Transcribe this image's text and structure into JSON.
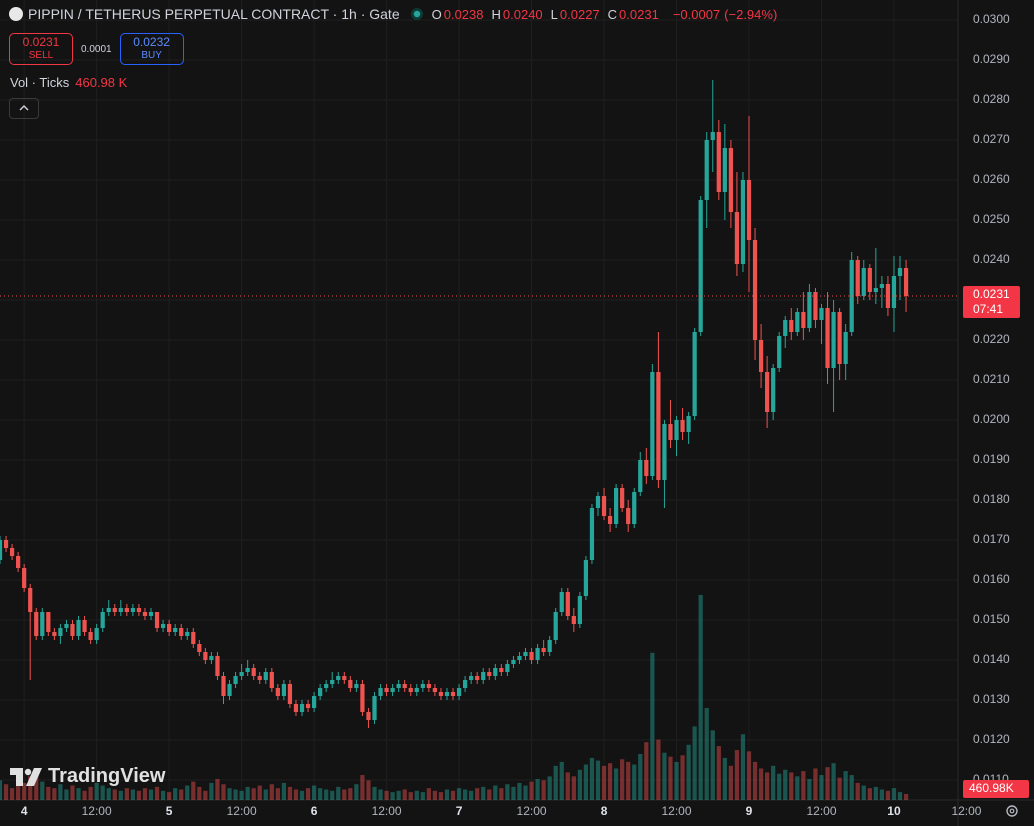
{
  "chart_data": {
    "type": "candlestick",
    "title": "PIPPIN / TETHERUS PERPETUAL CONTRACT · 1h · Gate",
    "ohlc": [
      {
        "key": "O",
        "value": 0.0238,
        "label": "0.0238"
      },
      {
        "key": "H",
        "value": 0.024,
        "label": "0.0240"
      },
      {
        "key": "L",
        "value": 0.0227,
        "label": "0.0227"
      },
      {
        "key": "C",
        "value": 0.0231,
        "label": "0.0231"
      }
    ],
    "change": {
      "value": -0.0007,
      "label": "−0.0007"
    },
    "change_percent": {
      "value": -2.94,
      "label": "(−2.94%)"
    },
    "sell": {
      "value": 0.0231,
      "label": "0.0231"
    },
    "sell_text": "SELL",
    "spread": {
      "value": 0.0001,
      "label": "0.0001"
    },
    "buy": {
      "value": 0.0232,
      "label": "0.0232"
    },
    "buy_text": "BUY",
    "volume_title": "Vol · Ticks",
    "volume_last": {
      "value": 460.98,
      "label": "460.98 K"
    },
    "volume_axis_label": {
      "value": 460.98,
      "label": "460.98K"
    },
    "last_price": {
      "value": 0.0231,
      "label": "0.0231"
    },
    "countdown": "07:41",
    "logo": "TradingView",
    "up_color": "#26a69a",
    "down_color": "#ef5350",
    "grid": true,
    "xlim": [
      -4,
      154.6
    ],
    "ylim": [
      0.0305,
      0.0105
    ],
    "xticks": [
      {
        "value": 0,
        "label": "4"
      },
      {
        "value": 12,
        "label": "12:00"
      },
      {
        "value": 24,
        "label": "5"
      },
      {
        "value": 36,
        "label": "12:00"
      },
      {
        "value": 48,
        "label": "6"
      },
      {
        "value": 60,
        "label": "12:00"
      },
      {
        "value": 72,
        "label": "7"
      },
      {
        "value": 84,
        "label": "12:00"
      },
      {
        "value": 96,
        "label": "8"
      },
      {
        "value": 108,
        "label": "12:00"
      },
      {
        "value": 120,
        "label": "9"
      },
      {
        "value": 132,
        "label": "12:00"
      },
      {
        "value": 144,
        "label": "10"
      },
      {
        "value": 156,
        "label": "12:00"
      }
    ],
    "yticks": [
      {
        "value": 0.011,
        "label": "0.0110"
      },
      {
        "value": 0.012,
        "label": "0.0120"
      },
      {
        "value": 0.013,
        "label": "0.0130"
      },
      {
        "value": 0.014,
        "label": "0.0140"
      },
      {
        "value": 0.015,
        "label": "0.0150"
      },
      {
        "value": 0.016,
        "label": "0.0160"
      },
      {
        "value": 0.017,
        "label": "0.0170"
      },
      {
        "value": 0.018,
        "label": "0.0180"
      },
      {
        "value": 0.019,
        "label": "0.0190"
      },
      {
        "value": 0.02,
        "label": "0.0200"
      },
      {
        "value": 0.021,
        "label": "0.0210"
      },
      {
        "value": 0.022,
        "label": "0.0220"
      },
      {
        "value": 0.023,
        "label": "0.0230"
      },
      {
        "value": 0.024,
        "label": "0.0240"
      },
      {
        "value": 0.025,
        "label": "0.0250"
      },
      {
        "value": 0.026,
        "label": "0.0260"
      },
      {
        "value": 0.027,
        "label": "0.0270"
      },
      {
        "value": 0.028,
        "label": "0.0280"
      },
      {
        "value": 0.029,
        "label": "0.0290"
      },
      {
        "value": 0.03,
        "label": "0.0300"
      }
    ],
    "x": [
      -4,
      -3,
      -2,
      -1,
      0,
      1,
      2,
      3,
      4,
      5,
      6,
      7,
      8,
      9,
      10,
      11,
      12,
      13,
      14,
      15,
      16,
      17,
      18,
      19,
      20,
      21,
      22,
      23,
      24,
      25,
      26,
      27,
      28,
      29,
      30,
      31,
      32,
      33,
      34,
      35,
      36,
      37,
      38,
      39,
      40,
      41,
      42,
      43,
      44,
      45,
      46,
      47,
      48,
      49,
      50,
      51,
      52,
      53,
      54,
      55,
      56,
      57,
      58,
      59,
      60,
      61,
      62,
      63,
      64,
      65,
      66,
      67,
      68,
      69,
      70,
      71,
      72,
      73,
      74,
      75,
      76,
      77,
      78,
      79,
      80,
      81,
      82,
      83,
      84,
      85,
      86,
      87,
      88,
      89,
      90,
      91,
      92,
      93,
      94,
      95,
      96,
      97,
      98,
      99,
      100,
      101,
      102,
      103,
      104,
      105,
      106,
      107,
      108,
      109,
      110,
      111,
      112,
      113,
      114,
      115,
      116,
      117,
      118,
      119,
      120,
      121,
      122,
      123,
      124,
      125,
      126,
      127,
      128,
      129,
      130,
      131,
      132,
      133,
      134,
      135,
      136,
      137,
      138,
      139,
      140,
      141,
      142,
      143,
      144,
      145,
      146
    ],
    "candles": [
      [
        0.0165,
        0.0171,
        0.0164,
        0.017
      ],
      [
        0.017,
        0.0171,
        0.0167,
        0.0168
      ],
      [
        0.0168,
        0.0169,
        0.0165,
        0.0166
      ],
      [
        0.0166,
        0.0167,
        0.0162,
        0.0163
      ],
      [
        0.0163,
        0.0164,
        0.0157,
        0.0158
      ],
      [
        0.0158,
        0.0159,
        0.0135,
        0.0152
      ],
      [
        0.0152,
        0.0153,
        0.0145,
        0.0146
      ],
      [
        0.0146,
        0.0153,
        0.0145,
        0.0152
      ],
      [
        0.0152,
        0.0152,
        0.0146,
        0.0147
      ],
      [
        0.0147,
        0.0148,
        0.0145,
        0.0146
      ],
      [
        0.0146,
        0.0149,
        0.0144,
        0.0148
      ],
      [
        0.0148,
        0.015,
        0.0147,
        0.0149
      ],
      [
        0.0149,
        0.015,
        0.0145,
        0.0146
      ],
      [
        0.0146,
        0.0151,
        0.0145,
        0.015
      ],
      [
        0.015,
        0.0151,
        0.0146,
        0.0147
      ],
      [
        0.0147,
        0.0148,
        0.0144,
        0.0145
      ],
      [
        0.0145,
        0.0149,
        0.0144,
        0.0148
      ],
      [
        0.0148,
        0.0153,
        0.0147,
        0.0152
      ],
      [
        0.0152,
        0.0155,
        0.0151,
        0.0153
      ],
      [
        0.0153,
        0.0154,
        0.0151,
        0.0152
      ],
      [
        0.0152,
        0.0155,
        0.0151,
        0.0153
      ],
      [
        0.0153,
        0.0154,
        0.0151,
        0.0152
      ],
      [
        0.0152,
        0.0154,
        0.0151,
        0.0153
      ],
      [
        0.0153,
        0.0154,
        0.0151,
        0.0152
      ],
      [
        0.0152,
        0.0153,
        0.015,
        0.0151
      ],
      [
        0.0151,
        0.0153,
        0.015,
        0.0152
      ],
      [
        0.0152,
        0.0152,
        0.0147,
        0.0148
      ],
      [
        0.0148,
        0.015,
        0.0147,
        0.0149
      ],
      [
        0.0149,
        0.015,
        0.0146,
        0.0147
      ],
      [
        0.0147,
        0.0149,
        0.0146,
        0.0148
      ],
      [
        0.0148,
        0.0149,
        0.0145,
        0.0146
      ],
      [
        0.0146,
        0.0148,
        0.0145,
        0.0147
      ],
      [
        0.0147,
        0.0148,
        0.0143,
        0.0144
      ],
      [
        0.0144,
        0.0145,
        0.0141,
        0.0142
      ],
      [
        0.0142,
        0.0143,
        0.0139,
        0.014
      ],
      [
        0.014,
        0.0142,
        0.0139,
        0.0141
      ],
      [
        0.0141,
        0.0142,
        0.0135,
        0.0136
      ],
      [
        0.0136,
        0.0137,
        0.0129,
        0.0131
      ],
      [
        0.0131,
        0.0135,
        0.013,
        0.0134
      ],
      [
        0.0134,
        0.0137,
        0.0133,
        0.0136
      ],
      [
        0.0136,
        0.0139,
        0.0135,
        0.0137
      ],
      [
        0.0137,
        0.014,
        0.0136,
        0.0138
      ],
      [
        0.0138,
        0.0139,
        0.0135,
        0.0136
      ],
      [
        0.0136,
        0.0137,
        0.0134,
        0.0135
      ],
      [
        0.0135,
        0.0138,
        0.0134,
        0.0137
      ],
      [
        0.0137,
        0.0138,
        0.0132,
        0.0133
      ],
      [
        0.0133,
        0.0134,
        0.013,
        0.0131
      ],
      [
        0.0131,
        0.0135,
        0.013,
        0.0134
      ],
      [
        0.0134,
        0.0135,
        0.0128,
        0.0129
      ],
      [
        0.0129,
        0.013,
        0.0126,
        0.0127
      ],
      [
        0.0127,
        0.013,
        0.0126,
        0.0129
      ],
      [
        0.0129,
        0.013,
        0.0127,
        0.0128
      ],
      [
        0.0128,
        0.0132,
        0.0127,
        0.0131
      ],
      [
        0.0131,
        0.0134,
        0.013,
        0.0133
      ],
      [
        0.0133,
        0.0135,
        0.0132,
        0.0134
      ],
      [
        0.0134,
        0.0137,
        0.0133,
        0.0135
      ],
      [
        0.0135,
        0.0137,
        0.0134,
        0.0136
      ],
      [
        0.0136,
        0.0137,
        0.0134,
        0.0135
      ],
      [
        0.0135,
        0.0136,
        0.0132,
        0.0133
      ],
      [
        0.0133,
        0.0135,
        0.0132,
        0.0134
      ],
      [
        0.0134,
        0.0135,
        0.0126,
        0.0127
      ],
      [
        0.0127,
        0.0128,
        0.0123,
        0.0125
      ],
      [
        0.0125,
        0.0132,
        0.0124,
        0.0131
      ],
      [
        0.0131,
        0.0134,
        0.013,
        0.0133
      ],
      [
        0.0133,
        0.0134,
        0.0131,
        0.0132
      ],
      [
        0.0132,
        0.0134,
        0.0131,
        0.0133
      ],
      [
        0.0133,
        0.0135,
        0.0132,
        0.0134
      ],
      [
        0.0134,
        0.0135,
        0.0132,
        0.0133
      ],
      [
        0.0133,
        0.0134,
        0.0131,
        0.0132
      ],
      [
        0.0132,
        0.0134,
        0.0131,
        0.0133
      ],
      [
        0.0133,
        0.0135,
        0.0132,
        0.0134
      ],
      [
        0.0134,
        0.0135,
        0.0132,
        0.0133
      ],
      [
        0.0133,
        0.0134,
        0.0131,
        0.0132
      ],
      [
        0.0132,
        0.0133,
        0.013,
        0.0131
      ],
      [
        0.0131,
        0.0133,
        0.013,
        0.0132
      ],
      [
        0.0132,
        0.0133,
        0.013,
        0.0131
      ],
      [
        0.0131,
        0.0134,
        0.013,
        0.0133
      ],
      [
        0.0133,
        0.0136,
        0.0132,
        0.0135
      ],
      [
        0.0135,
        0.0137,
        0.0134,
        0.0136
      ],
      [
        0.0136,
        0.0137,
        0.0134,
        0.0135
      ],
      [
        0.0135,
        0.0138,
        0.0134,
        0.0137
      ],
      [
        0.0137,
        0.0138,
        0.0135,
        0.0136
      ],
      [
        0.0136,
        0.0139,
        0.0135,
        0.0138
      ],
      [
        0.0138,
        0.0139,
        0.0136,
        0.0137
      ],
      [
        0.0137,
        0.014,
        0.0136,
        0.0139
      ],
      [
        0.0139,
        0.0141,
        0.0138,
        0.014
      ],
      [
        0.014,
        0.0142,
        0.0139,
        0.0141
      ],
      [
        0.0141,
        0.0143,
        0.014,
        0.0142
      ],
      [
        0.0142,
        0.0143,
        0.0139,
        0.014
      ],
      [
        0.014,
        0.0144,
        0.0139,
        0.0143
      ],
      [
        0.0143,
        0.0145,
        0.0141,
        0.0142
      ],
      [
        0.0142,
        0.0146,
        0.0141,
        0.0145
      ],
      [
        0.0145,
        0.0153,
        0.0144,
        0.0152
      ],
      [
        0.0152,
        0.0158,
        0.0151,
        0.0157
      ],
      [
        0.0157,
        0.0158,
        0.015,
        0.0151
      ],
      [
        0.0151,
        0.0153,
        0.0147,
        0.0149
      ],
      [
        0.0149,
        0.0157,
        0.0148,
        0.0156
      ],
      [
        0.0156,
        0.0166,
        0.0155,
        0.0165
      ],
      [
        0.0165,
        0.0179,
        0.0164,
        0.0178
      ],
      [
        0.0178,
        0.0182,
        0.0176,
        0.0181
      ],
      [
        0.0181,
        0.0183,
        0.0175,
        0.0176
      ],
      [
        0.0176,
        0.0178,
        0.0172,
        0.0174
      ],
      [
        0.0174,
        0.0184,
        0.0173,
        0.0183
      ],
      [
        0.0183,
        0.0184,
        0.0177,
        0.0178
      ],
      [
        0.0178,
        0.018,
        0.0172,
        0.0174
      ],
      [
        0.0174,
        0.0183,
        0.0173,
        0.0182
      ],
      [
        0.0182,
        0.0192,
        0.0181,
        0.019
      ],
      [
        0.019,
        0.0193,
        0.0184,
        0.0186
      ],
      [
        0.0186,
        0.0214,
        0.0185,
        0.0212
      ],
      [
        0.0212,
        0.0222,
        0.0183,
        0.0185
      ],
      [
        0.0185,
        0.02,
        0.0178,
        0.0199
      ],
      [
        0.0199,
        0.0205,
        0.0193,
        0.0195
      ],
      [
        0.0195,
        0.0201,
        0.0191,
        0.02
      ],
      [
        0.02,
        0.0203,
        0.0195,
        0.0197
      ],
      [
        0.0197,
        0.0202,
        0.0194,
        0.0201
      ],
      [
        0.0201,
        0.0223,
        0.02,
        0.0222
      ],
      [
        0.0222,
        0.0256,
        0.0221,
        0.0255
      ],
      [
        0.0255,
        0.0272,
        0.0248,
        0.027
      ],
      [
        0.027,
        0.0285,
        0.0262,
        0.0272
      ],
      [
        0.0272,
        0.0275,
        0.0255,
        0.0257
      ],
      [
        0.0257,
        0.0274,
        0.025,
        0.0268
      ],
      [
        0.0268,
        0.027,
        0.0248,
        0.0252
      ],
      [
        0.0252,
        0.0262,
        0.0236,
        0.0239
      ],
      [
        0.0239,
        0.0262,
        0.0237,
        0.026
      ],
      [
        0.026,
        0.0276,
        0.0232,
        0.0245
      ],
      [
        0.0245,
        0.0248,
        0.0215,
        0.022
      ],
      [
        0.022,
        0.0224,
        0.0208,
        0.0212
      ],
      [
        0.0212,
        0.0216,
        0.0198,
        0.0202
      ],
      [
        0.0202,
        0.0214,
        0.02,
        0.0213
      ],
      [
        0.0213,
        0.0222,
        0.0212,
        0.0221
      ],
      [
        0.0221,
        0.0226,
        0.0218,
        0.0225
      ],
      [
        0.0225,
        0.0228,
        0.022,
        0.0222
      ],
      [
        0.0222,
        0.0228,
        0.0221,
        0.0227
      ],
      [
        0.0227,
        0.0232,
        0.022,
        0.0223
      ],
      [
        0.0223,
        0.0234,
        0.0222,
        0.0232
      ],
      [
        0.0232,
        0.0233,
        0.0223,
        0.0225
      ],
      [
        0.0225,
        0.0229,
        0.0219,
        0.0228
      ],
      [
        0.0228,
        0.0232,
        0.0209,
        0.0213
      ],
      [
        0.0213,
        0.023,
        0.0202,
        0.0227
      ],
      [
        0.0227,
        0.0228,
        0.021,
        0.0214
      ],
      [
        0.0214,
        0.0224,
        0.021,
        0.0222
      ],
      [
        0.0222,
        0.0242,
        0.0221,
        0.024
      ],
      [
        0.024,
        0.0241,
        0.0229,
        0.0231
      ],
      [
        0.0231,
        0.024,
        0.023,
        0.0238
      ],
      [
        0.0238,
        0.0239,
        0.023,
        0.0232
      ],
      [
        0.0232,
        0.0243,
        0.0229,
        0.0233
      ],
      [
        0.0233,
        0.0236,
        0.0228,
        0.0234
      ],
      [
        0.0234,
        0.0236,
        0.0226,
        0.0228
      ],
      [
        0.0228,
        0.0241,
        0.0222,
        0.0236
      ],
      [
        0.0236,
        0.0241,
        0.023,
        0.0238
      ],
      [
        0.0238,
        0.024,
        0.0227,
        0.0231
      ]
    ],
    "volume": [
      1500,
      1200,
      900,
      1100,
      1300,
      1800,
      2100,
      1400,
      1000,
      900,
      1200,
      800,
      1100,
      900,
      700,
      1000,
      1300,
      1100,
      900,
      800,
      700,
      900,
      800,
      700,
      900,
      800,
      1000,
      700,
      600,
      900,
      800,
      1100,
      1400,
      1000,
      700,
      1300,
      1600,
      1200,
      900,
      800,
      700,
      1000,
      900,
      1100,
      800,
      1200,
      900,
      1300,
      1000,
      800,
      700,
      900,
      1100,
      900,
      800,
      700,
      1000,
      800,
      900,
      1200,
      1900,
      1500,
      1000,
      800,
      700,
      600,
      700,
      800,
      600,
      700,
      600,
      900,
      700,
      600,
      800,
      700,
      900,
      800,
      700,
      900,
      1000,
      800,
      1100,
      900,
      1200,
      1000,
      1300,
      1100,
      1400,
      1600,
      1500,
      1800,
      2600,
      2900,
      2100,
      1800,
      2300,
      2700,
      3200,
      3000,
      2600,
      2800,
      2400,
      3100,
      2900,
      2700,
      3500,
      4400,
      11200,
      4600,
      3600,
      3300,
      2900,
      3400,
      4200,
      5600,
      15600,
      7000,
      5300,
      4100,
      3200,
      2600,
      3800,
      5000,
      3700,
      2900,
      2400,
      2100,
      2600,
      2000,
      2300,
      2100,
      1800,
      2200,
      1600,
      2400,
      1900,
      2500,
      2800,
      1700,
      2200,
      1900,
      1300,
      1100,
      900,
      1000,
      800,
      700,
      900,
      600,
      460.98
    ]
  }
}
